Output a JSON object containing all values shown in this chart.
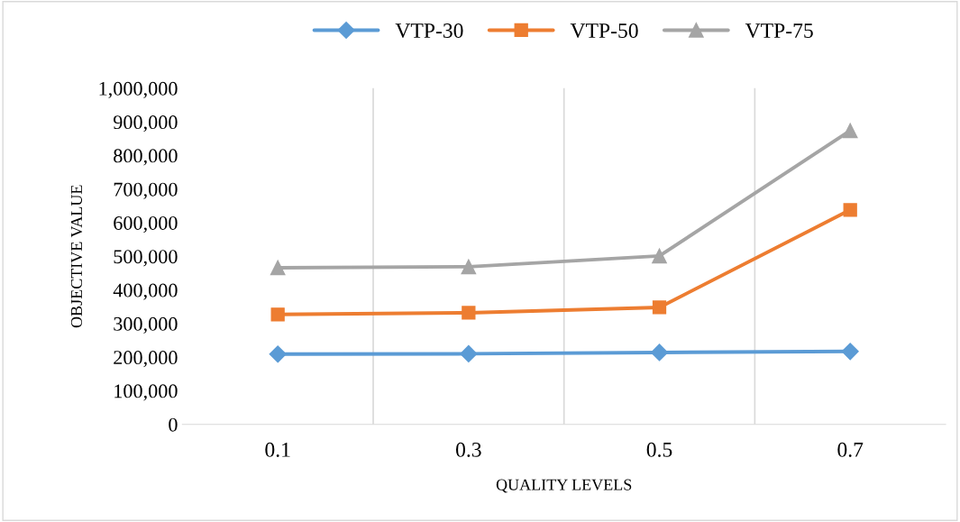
{
  "chart_data": {
    "type": "line",
    "xlabel": "QUALITY LEVELS",
    "ylabel": "OBJECTIVE VALUE",
    "categories": [
      "0.1",
      "0.3",
      "0.5",
      "0.7"
    ],
    "series": [
      {
        "name": "VTP-30",
        "color": "#5b9bd5",
        "marker": "diamond",
        "values": [
          209000,
          210000,
          214000,
          217000
        ]
      },
      {
        "name": "VTP-50",
        "color": "#ed7d31",
        "marker": "square",
        "values": [
          327000,
          332000,
          348000,
          638000
        ]
      },
      {
        "name": "VTP-75",
        "color": "#a5a5a5",
        "marker": "triangle",
        "values": [
          466000,
          469000,
          501000,
          874000
        ]
      }
    ],
    "ylim": [
      0,
      1000000
    ],
    "yticks": [
      {
        "value": 0,
        "label": "0"
      },
      {
        "value": 100000,
        "label": "100,000"
      },
      {
        "value": 200000,
        "label": "200,000"
      },
      {
        "value": 300000,
        "label": "300,000"
      },
      {
        "value": 400000,
        "label": "400,000"
      },
      {
        "value": 500000,
        "label": "500,000"
      },
      {
        "value": 600000,
        "label": "600,000"
      },
      {
        "value": 700000,
        "label": "700,000"
      },
      {
        "value": 800000,
        "label": "800,000"
      },
      {
        "value": 900000,
        "label": "900,000"
      },
      {
        "value": 1000000,
        "label": "1,000,000"
      }
    ],
    "grid": "x",
    "legend": "top",
    "line_style": "solid"
  }
}
